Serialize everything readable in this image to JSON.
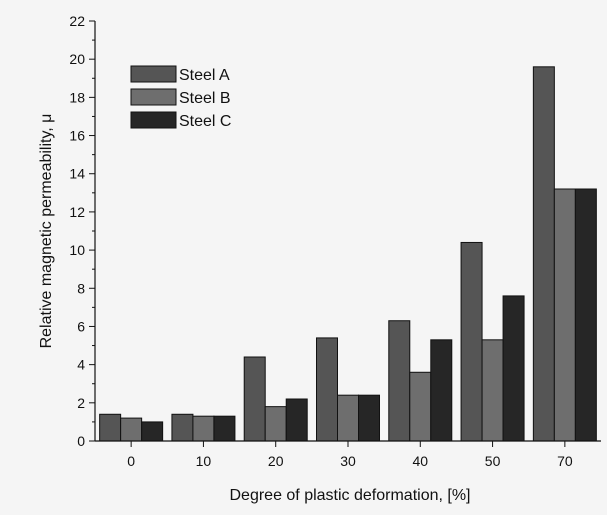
{
  "chart_data": {
    "type": "bar",
    "title": "",
    "xlabel": "Degree of plastic deformation, [%]",
    "ylabel": "Relative magnetic permeability, μ",
    "categories": [
      "0",
      "10",
      "20",
      "30",
      "40",
      "50",
      "70"
    ],
    "ylim": [
      0,
      22
    ],
    "yticks": [
      0,
      2,
      4,
      6,
      8,
      10,
      12,
      14,
      16,
      18,
      20,
      22
    ],
    "grid": false,
    "legend_position": "top-left",
    "series": [
      {
        "name": "Steel A",
        "color": "#555555",
        "values": [
          1.4,
          1.4,
          4.4,
          5.4,
          6.3,
          10.4,
          19.6
        ]
      },
      {
        "name": "Steel B",
        "color": "#6e6e6e",
        "values": [
          1.2,
          1.3,
          1.8,
          2.4,
          3.6,
          5.3,
          13.2
        ]
      },
      {
        "name": "Steel C",
        "color": "#262626",
        "values": [
          1.0,
          1.3,
          2.2,
          2.4,
          5.3,
          7.6,
          13.2
        ]
      }
    ]
  }
}
